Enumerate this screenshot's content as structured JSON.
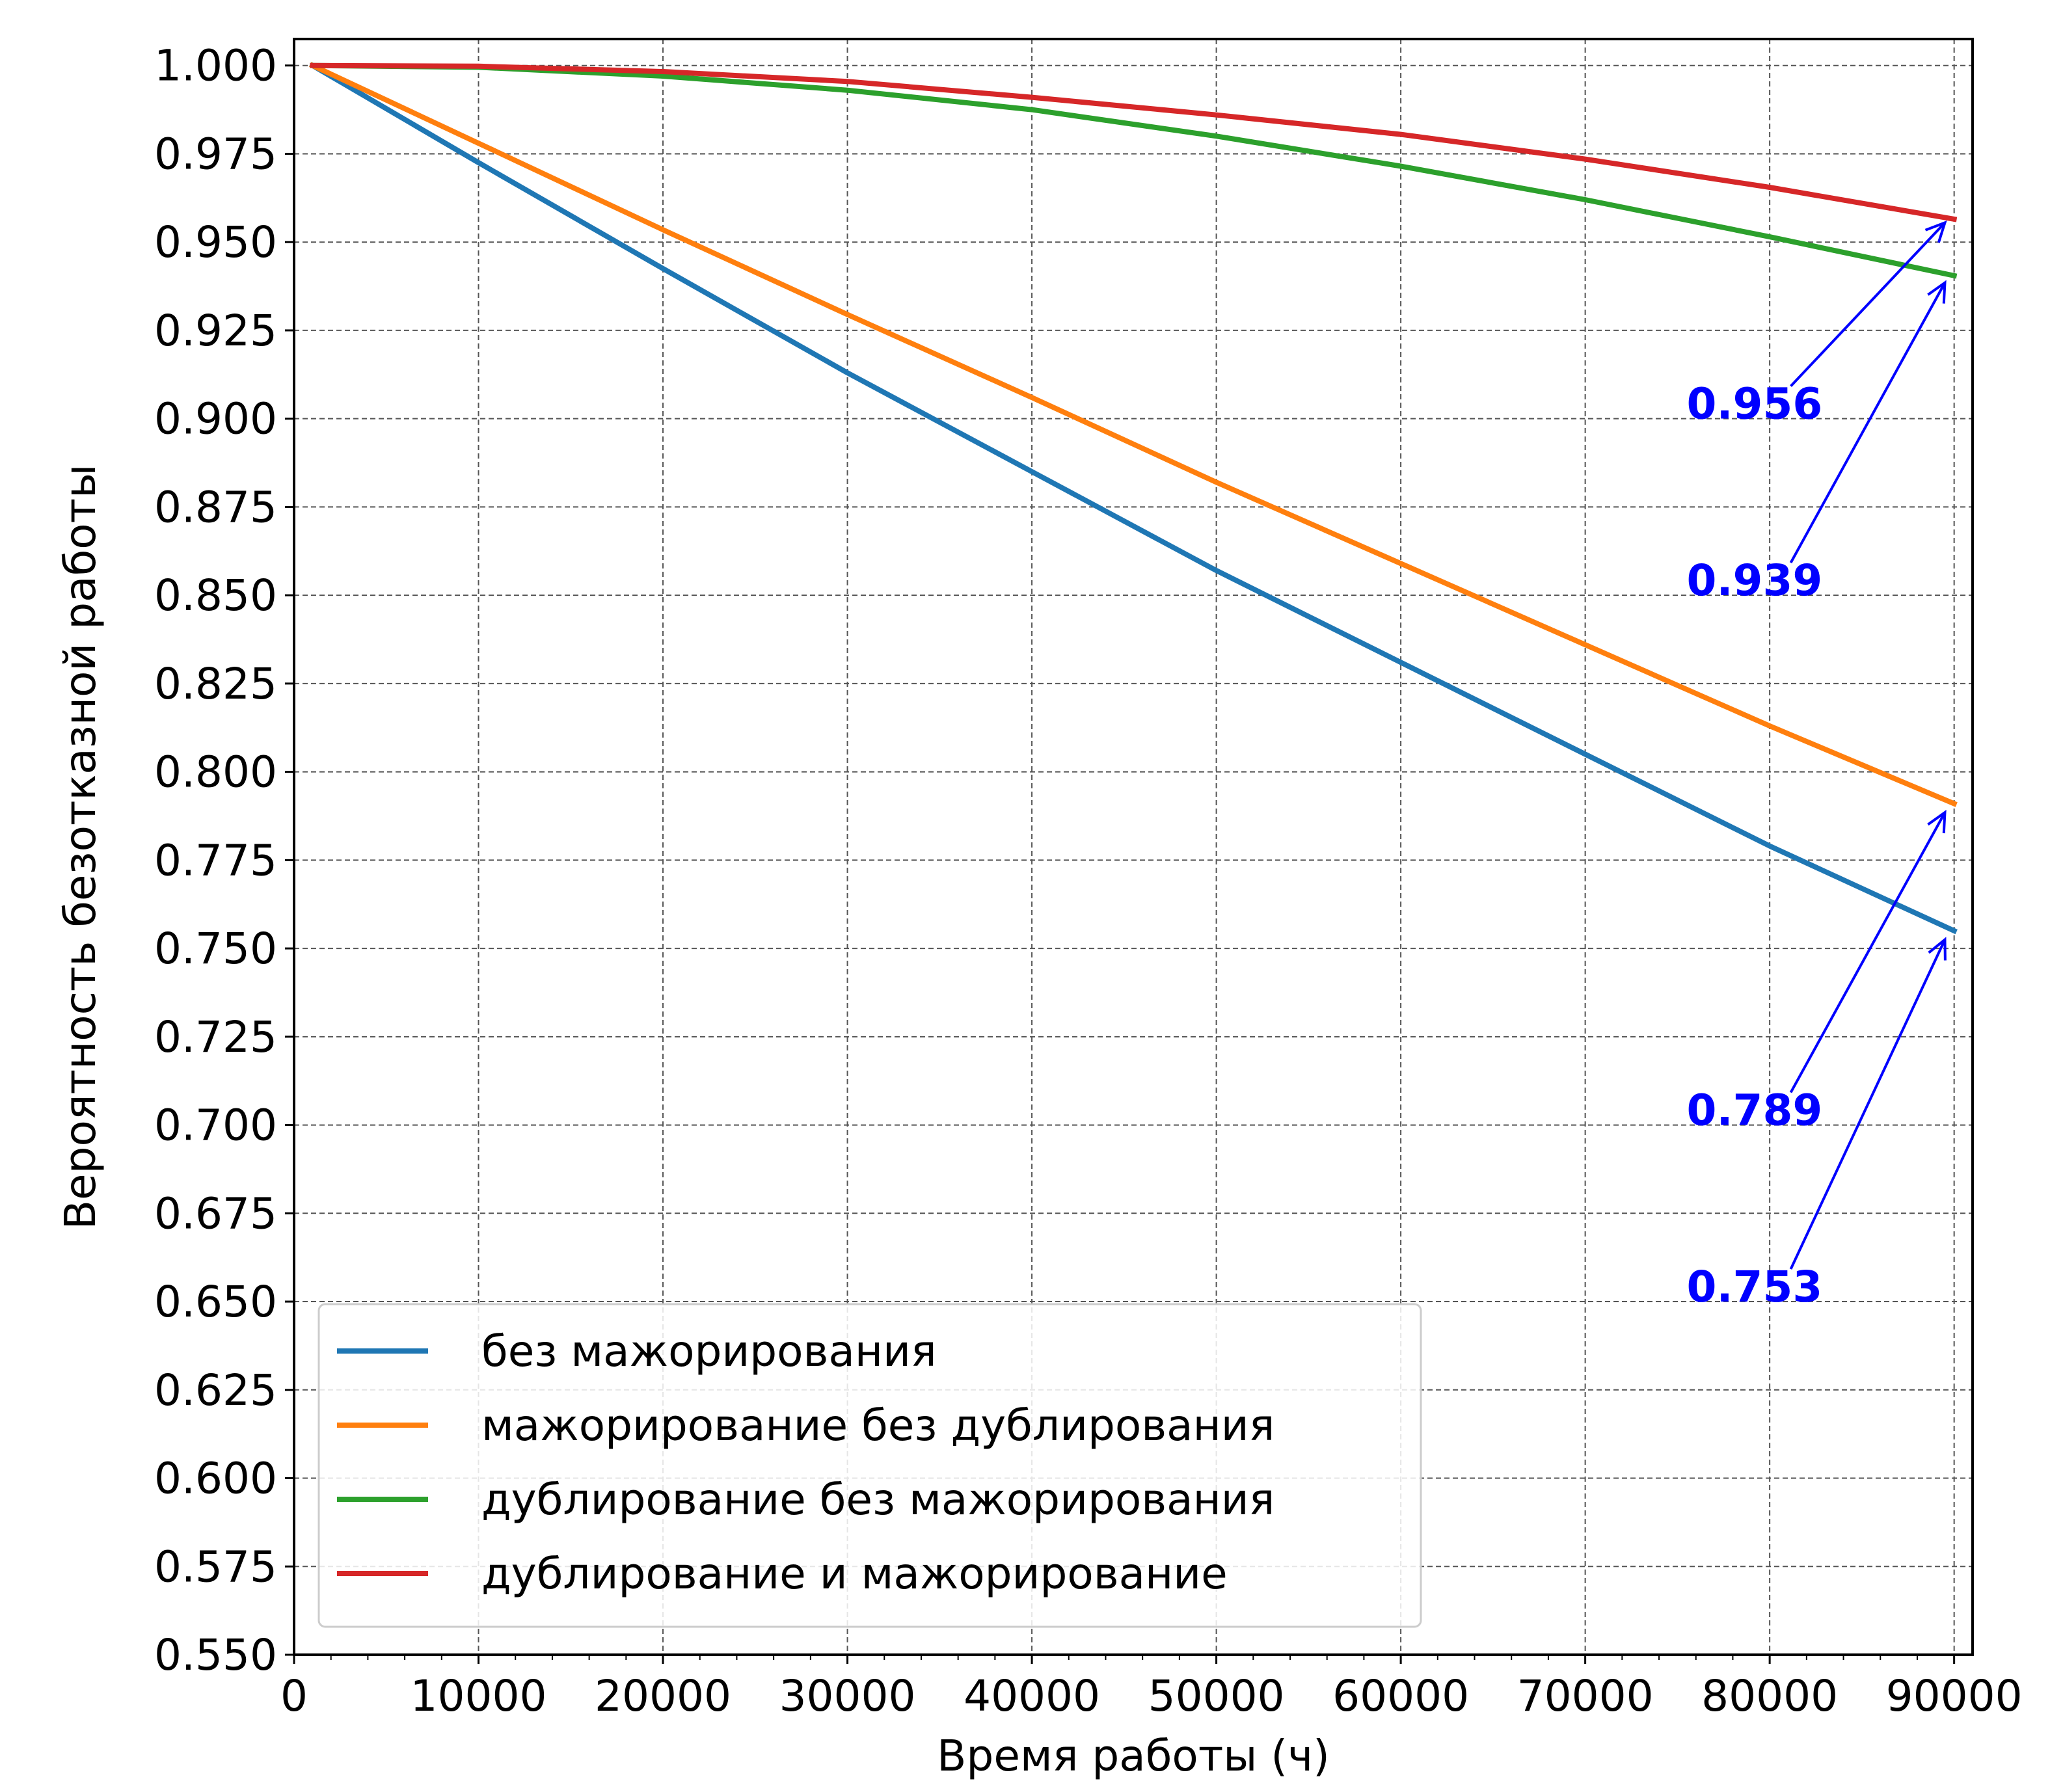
{
  "chart_data": {
    "type": "line",
    "title": "",
    "xlabel": "Время работы (ч)",
    "ylabel": "Вероятность безотказной работы",
    "xlim": [
      0,
      91000
    ],
    "ylim": [
      0.55,
      1.0075
    ],
    "xticks": [
      0,
      10000,
      20000,
      30000,
      40000,
      50000,
      60000,
      70000,
      80000,
      90000
    ],
    "xtick_labels": [
      "0",
      "10000",
      "20000",
      "30000",
      "40000",
      "50000",
      "60000",
      "70000",
      "80000",
      "90000"
    ],
    "yticks": [
      0.55,
      0.575,
      0.6,
      0.625,
      0.65,
      0.675,
      0.7,
      0.725,
      0.75,
      0.775,
      0.8,
      0.825,
      0.85,
      0.875,
      0.9,
      0.925,
      0.95,
      0.975,
      1.0
    ],
    "ytick_labels": [
      "0.550",
      "0.575",
      "0.600",
      "0.625",
      "0.650",
      "0.675",
      "0.700",
      "0.725",
      "0.750",
      "0.775",
      "0.800",
      "0.825",
      "0.850",
      "0.875",
      "0.900",
      "0.925",
      "0.950",
      "0.975",
      "1.000"
    ],
    "grid": true,
    "legend_position": "lower-left",
    "x": [
      1000,
      10000,
      20000,
      30000,
      40000,
      50000,
      60000,
      70000,
      80000,
      90000
    ],
    "series": [
      {
        "name": "без мажорирования",
        "color": "#1f77b4",
        "values": [
          1.0,
          0.9725,
          0.9425,
          0.913,
          0.885,
          0.857,
          0.831,
          0.805,
          0.779,
          0.755
        ]
      },
      {
        "name": "мажорирование без дублирования",
        "color": "#ff7f0e",
        "values": [
          1.0,
          0.978,
          0.9535,
          0.9295,
          0.906,
          0.882,
          0.859,
          0.836,
          0.813,
          0.791
        ]
      },
      {
        "name": "дублирование без мажорирования",
        "color": "#2ca02c",
        "values": [
          1.0,
          0.9995,
          0.997,
          0.993,
          0.9875,
          0.98,
          0.9715,
          0.962,
          0.9515,
          0.9405
        ]
      },
      {
        "name": "дублирование и мажорирование",
        "color": "#d62728",
        "values": [
          1.0,
          0.9998,
          0.9983,
          0.9955,
          0.991,
          0.986,
          0.9805,
          0.9735,
          0.9655,
          0.9565
        ]
      }
    ],
    "annotations": [
      {
        "text": "0.956",
        "text_x": 75500,
        "text_y": 0.9,
        "point_x": 89500,
        "point_y": 0.9555
      },
      {
        "text": "0.939",
        "text_x": 75500,
        "text_y": 0.85,
        "point_x": 89500,
        "point_y": 0.9385
      },
      {
        "text": "0.789",
        "text_x": 75500,
        "text_y": 0.7,
        "point_x": 89500,
        "point_y": 0.7885
      },
      {
        "text": "0.753",
        "text_x": 75500,
        "text_y": 0.65,
        "point_x": 89500,
        "point_y": 0.7525
      }
    ],
    "annotation_color": "#0000ff",
    "grid_color": "#555555",
    "axis_color": "#000000"
  }
}
